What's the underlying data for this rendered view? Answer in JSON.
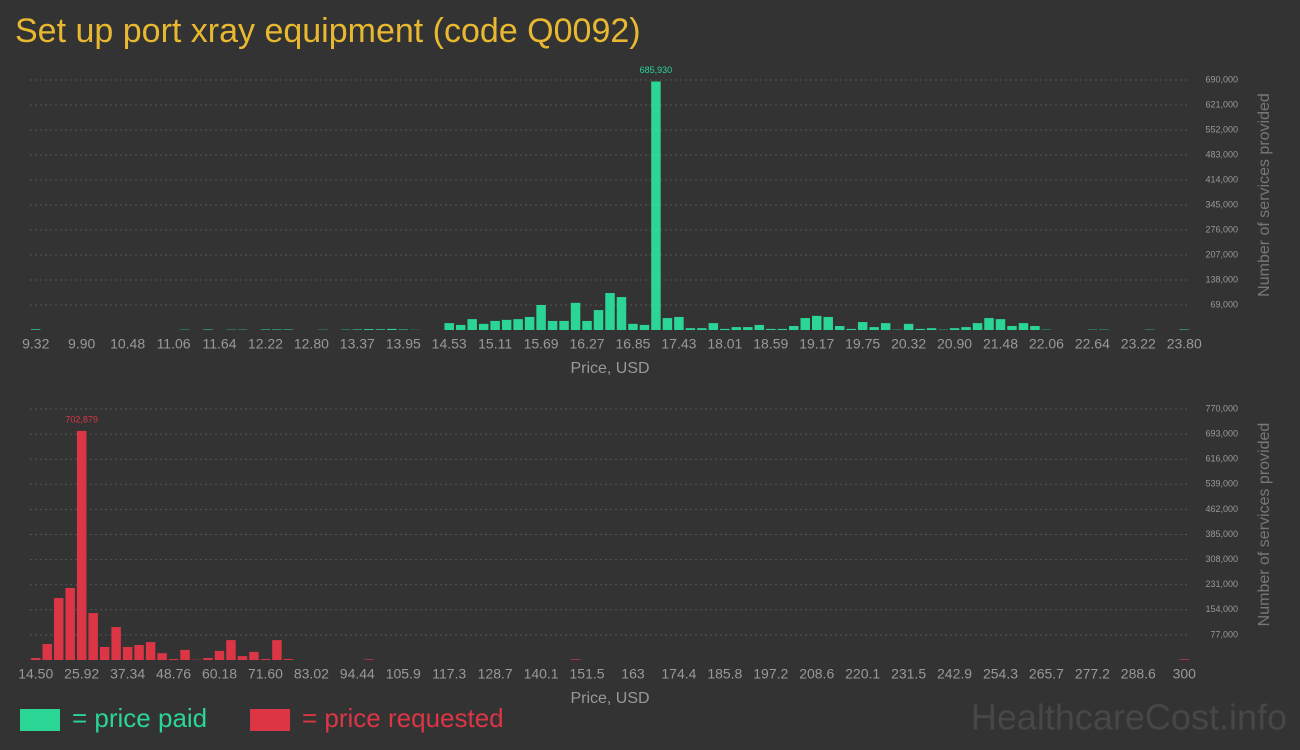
{
  "title": "Set up port xray equipment (code Q0092)",
  "watermark": "HealthcareCost.info",
  "legend": [
    {
      "label": "= price paid",
      "color": "#2bd596"
    },
    {
      "label": "= price requested",
      "color": "#dc3545"
    }
  ],
  "chart_data": [
    {
      "type": "bar",
      "color": "#2bd596",
      "xlabel": "Price, USD",
      "ylabel": "Number of services provided",
      "grid": true,
      "categories": [
        "9.32",
        null,
        null,
        null,
        "9.90",
        null,
        null,
        null,
        "10.48",
        null,
        null,
        null,
        "11.06",
        null,
        null,
        null,
        "11.64",
        null,
        null,
        null,
        "12.22",
        null,
        null,
        null,
        "12.80",
        null,
        null,
        null,
        "13.37",
        null,
        null,
        null,
        "13.95",
        null,
        null,
        null,
        "14.53",
        null,
        null,
        null,
        "15.11",
        null,
        null,
        null,
        "15.69",
        null,
        null,
        null,
        "16.27",
        null,
        null,
        null,
        "16.85",
        null,
        null,
        null,
        "17.43",
        null,
        null,
        null,
        "18.01",
        null,
        null,
        null,
        "18.59",
        null,
        null,
        null,
        "19.17",
        null,
        null,
        null,
        "19.75",
        null,
        null,
        null,
        "20.32",
        null,
        null,
        null,
        "20.90",
        null,
        null,
        null,
        "21.48",
        null,
        null,
        null,
        "22.06",
        null,
        null,
        null,
        "22.64",
        null,
        null,
        null,
        "23.22",
        null,
        null,
        null,
        "23.80"
      ],
      "values": [
        2000,
        0,
        0,
        0,
        0,
        0,
        0,
        0,
        0,
        0,
        0,
        0,
        0,
        1000,
        0,
        1500,
        0,
        1000,
        1000,
        0,
        1500,
        1500,
        1500,
        0,
        0,
        800,
        0,
        1000,
        1500,
        2500,
        2000,
        3000,
        1500,
        500,
        0,
        0,
        19000,
        14000,
        30000,
        17000,
        25000,
        28000,
        30000,
        36000,
        69000,
        25000,
        25000,
        75000,
        25000,
        55000,
        102000,
        91000,
        17000,
        14000,
        685930,
        33000,
        36000,
        5000,
        5000,
        19000,
        3000,
        8000,
        8000,
        14000,
        3000,
        3000,
        11000,
        33000,
        39000,
        36000,
        11000,
        3000,
        22000,
        8000,
        19000,
        1000,
        17000,
        3000,
        5000,
        1000,
        5000,
        8000,
        19000,
        33000,
        30000,
        11000,
        19000,
        11000,
        1000,
        0,
        0,
        0,
        1000,
        1000,
        0,
        0,
        0,
        1000,
        0,
        0,
        1500
      ],
      "value_labels": [
        null,
        null,
        null,
        null,
        null,
        null,
        null,
        null,
        null,
        null,
        null,
        null,
        null,
        null,
        null,
        null,
        null,
        null,
        null,
        null,
        null,
        null,
        null,
        null,
        null,
        null,
        null,
        null,
        null,
        null,
        null,
        null,
        null,
        null,
        null,
        null,
        null,
        null,
        null,
        null,
        null,
        null,
        null,
        null,
        null,
        null,
        null,
        null,
        null,
        null,
        null,
        null,
        null,
        null,
        "685,930",
        null,
        null,
        null,
        null,
        null,
        null,
        null,
        null,
        null,
        null,
        null,
        null,
        null,
        null,
        null,
        null,
        null,
        null,
        null,
        null,
        null,
        null,
        null,
        null,
        null,
        null,
        null,
        null,
        null,
        null,
        null,
        null,
        null,
        null,
        null,
        null,
        null,
        null,
        null,
        null,
        null,
        null,
        null,
        null,
        null,
        null
      ],
      "ylim": [
        0,
        690000
      ],
      "yticks": [
        {
          "value": 69000,
          "label": "69,000"
        },
        {
          "value": 138000,
          "label": "138,000"
        },
        {
          "value": 207000,
          "label": "207,000"
        },
        {
          "value": 276000,
          "label": "276,000"
        },
        {
          "value": 345000,
          "label": "345,000"
        },
        {
          "value": 414000,
          "label": "414,000"
        },
        {
          "value": 483000,
          "label": "483,000"
        },
        {
          "value": 552000,
          "label": "552,000"
        },
        {
          "value": 621000,
          "label": "621,000"
        },
        {
          "value": 690000,
          "label": "690,000"
        }
      ]
    },
    {
      "type": "bar",
      "color": "#dc3545",
      "xlabel": "Price, USD",
      "ylabel": "Number of services provided",
      "grid": true,
      "categories": [
        "14.50",
        null,
        null,
        null,
        "25.92",
        null,
        null,
        null,
        "37.34",
        null,
        null,
        null,
        "48.76",
        null,
        null,
        null,
        "60.18",
        null,
        null,
        null,
        "71.60",
        null,
        null,
        null,
        "83.02",
        null,
        null,
        null,
        "94.44",
        null,
        null,
        null,
        "105.9",
        null,
        null,
        null,
        "117.3",
        null,
        null,
        null,
        "128.7",
        null,
        null,
        null,
        "140.1",
        null,
        null,
        null,
        "151.5",
        null,
        null,
        null,
        "163",
        null,
        null,
        null,
        "174.4",
        null,
        null,
        null,
        "185.8",
        null,
        null,
        null,
        "197.2",
        null,
        null,
        null,
        "208.6",
        null,
        null,
        null,
        "220.1",
        null,
        null,
        null,
        "231.5",
        null,
        null,
        null,
        "242.9",
        null,
        null,
        null,
        "254.3",
        null,
        null,
        null,
        "265.7",
        null,
        null,
        null,
        "277.2",
        null,
        null,
        null,
        "288.6",
        null,
        null,
        null,
        "300"
      ],
      "values": [
        6000,
        49000,
        190000,
        221000,
        702879,
        144000,
        40000,
        101000,
        40000,
        46000,
        55000,
        21000,
        3000,
        31000,
        1000,
        6000,
        28000,
        61000,
        12000,
        25000,
        3000,
        61000,
        3000,
        0,
        0,
        0,
        0,
        0,
        0,
        2000,
        0,
        0,
        0,
        0,
        0,
        0,
        0,
        0,
        0,
        0,
        0,
        0,
        0,
        0,
        0,
        0,
        0,
        2000,
        0,
        0,
        0,
        0,
        0,
        0,
        0,
        0,
        0,
        0,
        0,
        0,
        0,
        0,
        0,
        0,
        0,
        0,
        0,
        0,
        0,
        0,
        0,
        0,
        0,
        0,
        0,
        0,
        0,
        0,
        0,
        0,
        0,
        0,
        0,
        0,
        0,
        0,
        0,
        0,
        0,
        0,
        0,
        0,
        0,
        0,
        0,
        0,
        0,
        0,
        0,
        0,
        2000
      ],
      "value_labels": [
        null,
        null,
        null,
        null,
        "702,879",
        null,
        null,
        null,
        null,
        null,
        null,
        null,
        null,
        null,
        null,
        null,
        null,
        null,
        null,
        null,
        null,
        null,
        null,
        null,
        null,
        null,
        null,
        null,
        null,
        null,
        null,
        null,
        null,
        null,
        null,
        null,
        null,
        null,
        null,
        null,
        null,
        null,
        null,
        null,
        null,
        null,
        null,
        null,
        null,
        null,
        null,
        null,
        null,
        null,
        null,
        null,
        null,
        null,
        null,
        null,
        null,
        null,
        null,
        null,
        null,
        null,
        null,
        null,
        null,
        null,
        null,
        null,
        null,
        null,
        null,
        null,
        null,
        null,
        null,
        null,
        null,
        null,
        null,
        null,
        null,
        null,
        null,
        null,
        null,
        null,
        null,
        null,
        null,
        null,
        null,
        null,
        null,
        null,
        null,
        null,
        null
      ],
      "ylim": [
        0,
        770000
      ],
      "yticks": [
        {
          "value": 77000,
          "label": "77,000"
        },
        {
          "value": 154000,
          "label": "154,000"
        },
        {
          "value": 231000,
          "label": "231,000"
        },
        {
          "value": 308000,
          "label": "308,000"
        },
        {
          "value": 385000,
          "label": "385,000"
        },
        {
          "value": 462000,
          "label": "462,000"
        },
        {
          "value": 539000,
          "label": "539,000"
        },
        {
          "value": 616000,
          "label": "616,000"
        },
        {
          "value": 693000,
          "label": "693,000"
        },
        {
          "value": 770000,
          "label": "770,000"
        }
      ]
    }
  ]
}
